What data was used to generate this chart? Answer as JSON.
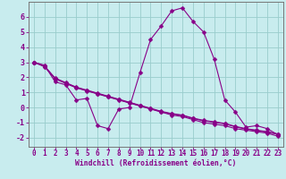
{
  "xlabel": "Windchill (Refroidissement éolien,°C)",
  "bg_color": "#c8ecee",
  "line_color": "#880088",
  "grid_color": "#99cccc",
  "spine_color": "#777777",
  "xlim": [
    -0.5,
    23.5
  ],
  "ylim": [
    -2.6,
    7.0
  ],
  "xticks": [
    0,
    1,
    2,
    3,
    4,
    5,
    6,
    7,
    8,
    9,
    10,
    11,
    12,
    13,
    14,
    15,
    16,
    17,
    18,
    19,
    20,
    21,
    22,
    23
  ],
  "yticks": [
    -2,
    -1,
    0,
    1,
    2,
    3,
    4,
    5,
    6
  ],
  "series": [
    [
      3.0,
      2.8,
      1.7,
      1.5,
      0.5,
      0.6,
      -1.2,
      -1.4,
      -0.1,
      0.0,
      2.3,
      4.5,
      5.4,
      6.4,
      6.6,
      5.7,
      5.0,
      3.2,
      0.5,
      -0.3,
      -1.3,
      -1.2,
      -1.4,
      -1.8
    ],
    [
      3.0,
      2.7,
      1.9,
      1.6,
      1.3,
      1.1,
      0.9,
      0.7,
      0.5,
      0.3,
      0.1,
      -0.1,
      -0.3,
      -0.5,
      -0.6,
      -0.8,
      -1.0,
      -1.1,
      -1.2,
      -1.4,
      -1.5,
      -1.6,
      -1.7,
      -1.9
    ],
    [
      3.0,
      2.75,
      1.95,
      1.65,
      1.35,
      1.15,
      0.95,
      0.75,
      0.55,
      0.35,
      0.15,
      -0.05,
      -0.25,
      -0.4,
      -0.5,
      -0.7,
      -0.85,
      -0.95,
      -1.05,
      -1.25,
      -1.4,
      -1.5,
      -1.6,
      -1.75
    ],
    [
      3.0,
      2.72,
      1.92,
      1.62,
      1.32,
      1.12,
      0.92,
      0.72,
      0.52,
      0.32,
      0.12,
      -0.08,
      -0.28,
      -0.43,
      -0.53,
      -0.73,
      -0.88,
      -0.98,
      -1.08,
      -1.28,
      -1.43,
      -1.53,
      -1.63,
      -1.78
    ]
  ],
  "marker": "D",
  "markersize": 2.5,
  "linewidth": 0.8,
  "tick_fontsize": 5.5,
  "xlabel_fontsize": 5.8
}
